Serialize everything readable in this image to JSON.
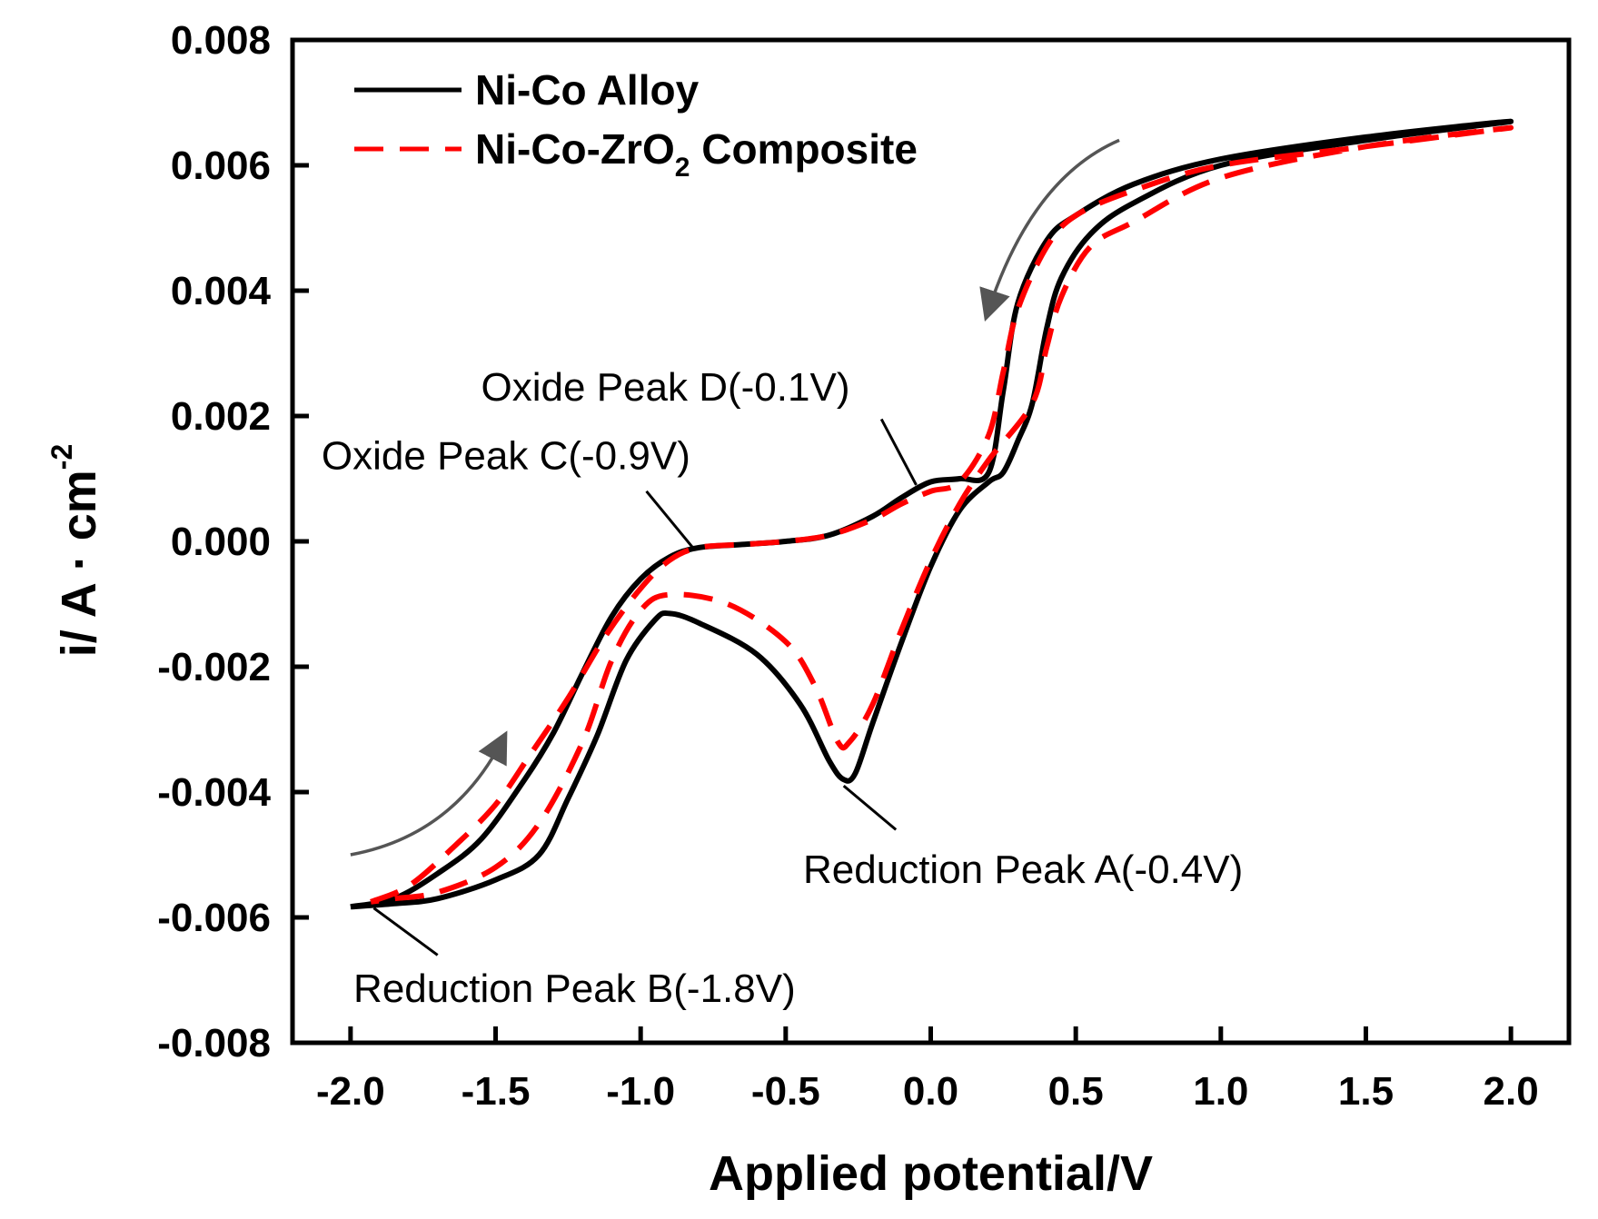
{
  "chart_data": {
    "type": "line",
    "title": "",
    "xlabel": "Applied potential/V",
    "ylabel": {
      "main": "i/ A · cm",
      "sup": "-2"
    },
    "xlim": [
      -2.2,
      2.2
    ],
    "ylim": [
      -0.008,
      0.008
    ],
    "xticks": [
      -2.0,
      -1.5,
      -1.0,
      -0.5,
      0.0,
      0.5,
      1.0,
      1.5,
      2.0
    ],
    "xtick_labels": [
      "-2.0",
      "-1.5",
      "-1.0",
      "-0.5",
      "0.0",
      "0.5",
      "1.0",
      "1.5",
      "2.0"
    ],
    "yticks": [
      -0.008,
      -0.006,
      -0.004,
      -0.002,
      0.0,
      0.002,
      0.004,
      0.006,
      0.008
    ],
    "ytick_labels": [
      "-0.008",
      "-0.006",
      "-0.004",
      "-0.002",
      "0.000",
      "0.002",
      "0.004",
      "0.006",
      "0.008"
    ],
    "grid": false,
    "legend_position": "top-left",
    "series": [
      {
        "name": "Ni-Co Alloy",
        "legend_label": {
          "main": "Ni-Co Alloy",
          "sub": ""
        },
        "color": "#000000",
        "style": "solid",
        "points": [
          [
            -2.0,
            -0.00583
          ],
          [
            -1.85,
            -0.0057
          ],
          [
            -1.7,
            -0.0053
          ],
          [
            -1.55,
            -0.00475
          ],
          [
            -1.4,
            -0.0038
          ],
          [
            -1.3,
            -0.00305
          ],
          [
            -1.2,
            -0.0021
          ],
          [
            -1.1,
            -0.0012
          ],
          [
            -1.0,
            -0.0006
          ],
          [
            -0.9,
            -0.00025
          ],
          [
            -0.8,
            -0.0001
          ],
          [
            -0.65,
            -5e-05
          ],
          [
            -0.5,
            0.0
          ],
          [
            -0.35,
            0.0001
          ],
          [
            -0.2,
            0.0004
          ],
          [
            -0.1,
            0.0007
          ],
          [
            0.0,
            0.00095
          ],
          [
            0.1,
            0.001
          ],
          [
            0.2,
            0.0011
          ],
          [
            0.25,
            0.0024
          ],
          [
            0.3,
            0.0038
          ],
          [
            0.4,
            0.0048
          ],
          [
            0.5,
            0.0052
          ],
          [
            0.7,
            0.0057
          ],
          [
            1.0,
            0.0061
          ],
          [
            1.5,
            0.00645
          ],
          [
            2.0,
            0.0067
          ],
          [
            1.5,
            0.0064
          ],
          [
            1.0,
            0.006
          ],
          [
            0.7,
            0.0054
          ],
          [
            0.55,
            0.0049
          ],
          [
            0.45,
            0.0042
          ],
          [
            0.4,
            0.0034
          ],
          [
            0.35,
            0.0022
          ],
          [
            0.3,
            0.0016
          ],
          [
            0.25,
            0.0011
          ],
          [
            0.2,
            0.00095
          ],
          [
            0.1,
            0.0005
          ],
          [
            0.0,
            -0.0004
          ],
          [
            -0.1,
            -0.0016
          ],
          [
            -0.2,
            -0.0029
          ],
          [
            -0.26,
            -0.0037
          ],
          [
            -0.3,
            -0.0038
          ],
          [
            -0.35,
            -0.0035
          ],
          [
            -0.45,
            -0.0026
          ],
          [
            -0.6,
            -0.0018
          ],
          [
            -0.8,
            -0.0013
          ],
          [
            -0.9,
            -0.00115
          ],
          [
            -0.95,
            -0.00125
          ],
          [
            -1.05,
            -0.0019
          ],
          [
            -1.15,
            -0.0031
          ],
          [
            -1.25,
            -0.0041
          ],
          [
            -1.35,
            -0.005
          ],
          [
            -1.5,
            -0.0054
          ],
          [
            -1.7,
            -0.0057
          ],
          [
            -1.85,
            -0.00578
          ],
          [
            -2.0,
            -0.00583
          ]
        ]
      },
      {
        "name": "Ni-Co-ZrO2 Composite",
        "legend_label": {
          "main": "Ni-Co-ZrO",
          "sub": "2",
          "tail": " Composite"
        },
        "color": "#ff0000",
        "style": "dashed",
        "points": [
          [
            -1.93,
            -0.00575
          ],
          [
            -1.8,
            -0.0055
          ],
          [
            -1.65,
            -0.0049
          ],
          [
            -1.5,
            -0.0042
          ],
          [
            -1.38,
            -0.0034
          ],
          [
            -1.25,
            -0.0025
          ],
          [
            -1.12,
            -0.0015
          ],
          [
            -1.0,
            -0.00075
          ],
          [
            -0.9,
            -0.0003
          ],
          [
            -0.8,
            -0.0001
          ],
          [
            -0.65,
            -5e-05
          ],
          [
            -0.5,
            0.0
          ],
          [
            -0.35,
            0.0001
          ],
          [
            -0.2,
            0.00035
          ],
          [
            -0.1,
            0.0006
          ],
          [
            0.0,
            0.0008
          ],
          [
            0.1,
            0.00095
          ],
          [
            0.2,
            0.0017
          ],
          [
            0.25,
            0.0027
          ],
          [
            0.3,
            0.0037
          ],
          [
            0.4,
            0.0047
          ],
          [
            0.5,
            0.0052
          ],
          [
            0.7,
            0.0056
          ],
          [
            1.0,
            0.006
          ],
          [
            1.5,
            0.0063
          ],
          [
            2.0,
            0.0066
          ],
          [
            1.5,
            0.0063
          ],
          [
            1.0,
            0.0058
          ],
          [
            0.7,
            0.0051
          ],
          [
            0.55,
            0.0047
          ],
          [
            0.45,
            0.0039
          ],
          [
            0.4,
            0.0031
          ],
          [
            0.35,
            0.0022
          ],
          [
            0.2,
            0.0013
          ],
          [
            0.1,
            0.0006
          ],
          [
            0.0,
            -0.0003
          ],
          [
            -0.1,
            -0.0014
          ],
          [
            -0.2,
            -0.0026
          ],
          [
            -0.28,
            -0.0032
          ],
          [
            -0.32,
            -0.0032
          ],
          [
            -0.4,
            -0.0023
          ],
          [
            -0.5,
            -0.0016
          ],
          [
            -0.7,
            -0.001
          ],
          [
            -0.9,
            -0.00085
          ],
          [
            -1.0,
            -0.0011
          ],
          [
            -1.1,
            -0.0019
          ],
          [
            -1.2,
            -0.0032
          ],
          [
            -1.35,
            -0.0045
          ],
          [
            -1.5,
            -0.0052
          ],
          [
            -1.7,
            -0.0056
          ],
          [
            -1.85,
            -0.0057
          ],
          [
            -1.93,
            -0.00575
          ]
        ]
      }
    ],
    "annotations": [
      {
        "text": "Oxide Peak D(-0.1V)",
        "point": [
          -0.05,
          0.0009
        ],
        "label_anchor": [
          -1.55,
          0.00225
        ],
        "line_from": [
          -0.17,
          0.00195
        ]
      },
      {
        "text": "Oxide Peak C(-0.9V)",
        "point": [
          -0.82,
          -0.0001
        ],
        "label_anchor": [
          -2.1,
          0.00115
        ],
        "line_from": [
          -0.98,
          0.0008
        ]
      },
      {
        "text": "Reduction Peak A(-0.4V)",
        "point": [
          -0.3,
          -0.0039
        ],
        "label_anchor": [
          -0.44,
          -0.00545
        ],
        "line_from": [
          -0.12,
          -0.0046
        ]
      },
      {
        "text": "Reduction Peak B(-1.8V)",
        "point": [
          -1.92,
          -0.00585
        ],
        "label_anchor": [
          -1.99,
          -0.00735
        ],
        "line_from": [
          -1.7,
          -0.0066
        ]
      }
    ],
    "direction_arrows": [
      {
        "from": [
          -2.0,
          -0.005
        ],
        "control": [
          -1.65,
          -0.0047
        ],
        "to": [
          -1.48,
          -0.0032
        ]
      },
      {
        "from": [
          0.65,
          0.0064
        ],
        "control": [
          0.35,
          0.0058
        ],
        "to": [
          0.2,
          0.0037
        ]
      }
    ]
  }
}
